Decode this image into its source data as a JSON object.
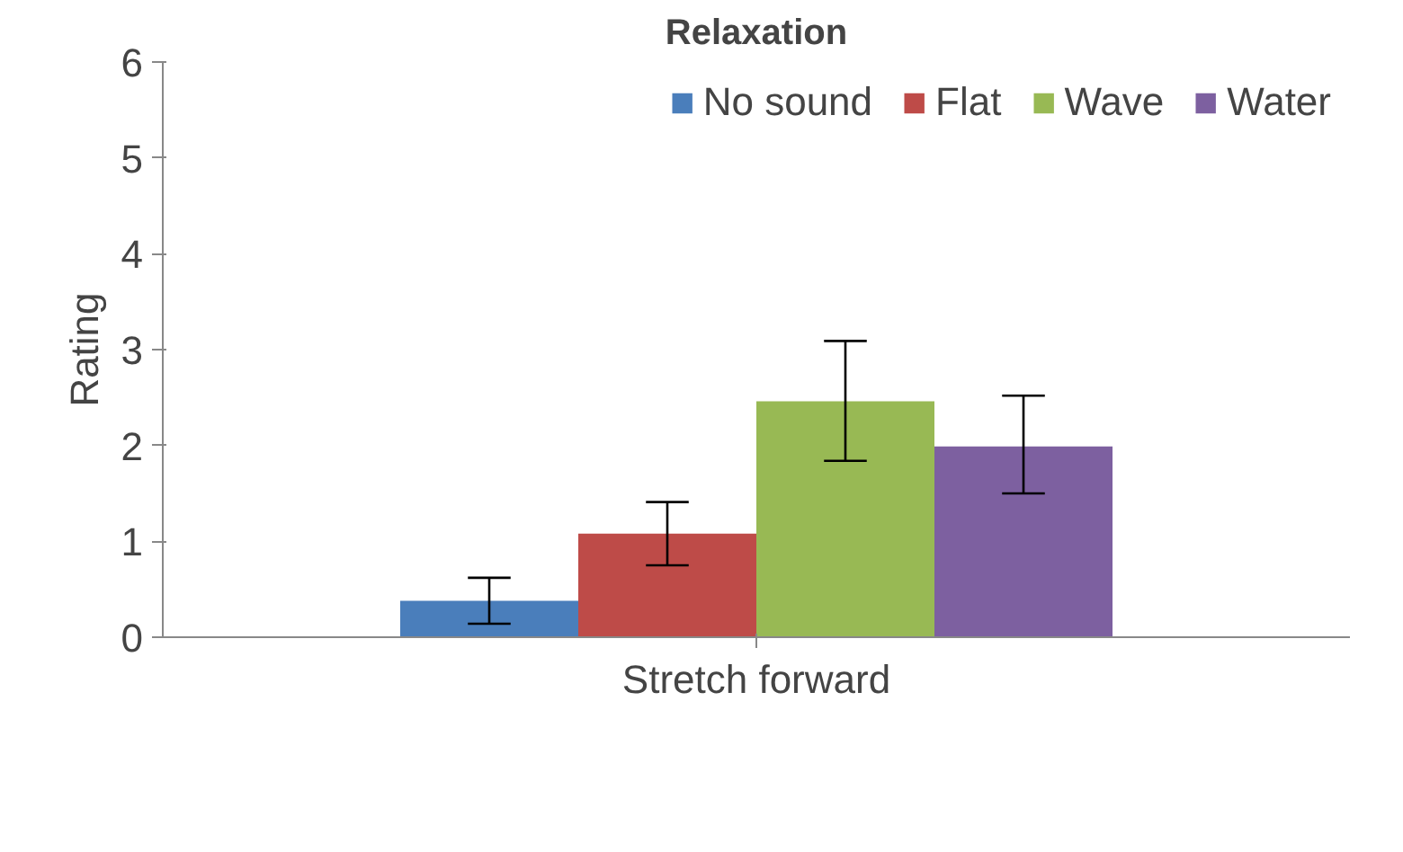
{
  "chart_data": {
    "type": "bar",
    "title": "Relaxation",
    "ylabel": "Rating",
    "categories": [
      "Stretch forward"
    ],
    "series": [
      {
        "name": "No sound",
        "color": "#4a7ebb",
        "values": [
          0.38
        ],
        "errors": [
          [
            0.14,
            0.62
          ]
        ]
      },
      {
        "name": "Flat",
        "color": "#be4b48",
        "values": [
          1.08
        ],
        "errors": [
          [
            0.75,
            1.41
          ]
        ]
      },
      {
        "name": "Wave",
        "color": "#98b954",
        "values": [
          2.46
        ],
        "errors": [
          [
            1.84,
            3.09
          ]
        ]
      },
      {
        "name": "Water",
        "color": "#7d60a0",
        "values": [
          1.99
        ],
        "errors": [
          [
            1.5,
            2.52
          ]
        ]
      }
    ],
    "ylim": [
      0,
      6
    ],
    "yticks": [
      0,
      1,
      2,
      3,
      4,
      5,
      6
    ],
    "grid": false,
    "legend": "top right"
  }
}
